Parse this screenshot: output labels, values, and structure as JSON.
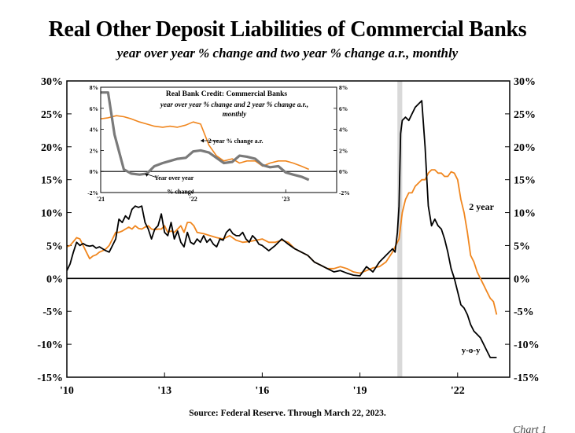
{
  "title": "Real Other Deposit Liabilities of Commercial Banks",
  "subtitle": "year over year % change and two year % change a.r., monthly",
  "source": "Source: Federal Reserve. Through March 22, 2023.",
  "footer_cut": "Chart 1",
  "colors": {
    "yoy": "#000000",
    "two_year": "#f0861e",
    "inset_yoy": "#7a7a7a",
    "shade": "#d9d9d9"
  },
  "chart_data": [
    {
      "type": "line",
      "title": "Real Other Deposit Liabilities of Commercial Banks",
      "xlim": [
        2010.0,
        2023.6
      ],
      "ylim": [
        -15,
        30
      ],
      "ytick_values": [
        -15,
        -10,
        -5,
        0,
        5,
        10,
        15,
        20,
        25,
        30
      ],
      "ytick_labels": [
        "-15%",
        "-10%",
        "-5%",
        "0%",
        "5%",
        "10%",
        "15%",
        "20%",
        "25%",
        "30%"
      ],
      "xtick_values": [
        2010,
        2013,
        2016,
        2019,
        2022
      ],
      "xtick_labels": [
        "'10",
        "'13",
        "'16",
        "'19",
        "'22"
      ],
      "recession": [
        2020.15,
        2020.3
      ],
      "series": [
        {
          "name": "y-o-y",
          "label": "y-o-y",
          "x": [
            2010.0,
            2010.1,
            2010.2,
            2010.3,
            2010.4,
            2010.5,
            2010.6,
            2010.7,
            2010.8,
            2010.9,
            2011.0,
            2011.1,
            2011.2,
            2011.3,
            2011.4,
            2011.5,
            2011.6,
            2011.7,
            2011.8,
            2011.9,
            2012.0,
            2012.1,
            2012.2,
            2012.3,
            2012.4,
            2012.5,
            2012.6,
            2012.7,
            2012.8,
            2012.9,
            2013.0,
            2013.1,
            2013.2,
            2013.3,
            2013.4,
            2013.5,
            2013.6,
            2013.7,
            2013.8,
            2013.9,
            2014.0,
            2014.1,
            2014.2,
            2014.3,
            2014.4,
            2014.5,
            2014.6,
            2014.7,
            2014.8,
            2014.9,
            2015.0,
            2015.1,
            2015.2,
            2015.3,
            2015.4,
            2015.5,
            2015.6,
            2015.7,
            2015.8,
            2015.9,
            2016.0,
            2016.2,
            2016.4,
            2016.6,
            2016.8,
            2017.0,
            2017.2,
            2017.4,
            2017.6,
            2017.8,
            2018.0,
            2018.2,
            2018.4,
            2018.6,
            2018.8,
            2019.0,
            2019.2,
            2019.4,
            2019.6,
            2019.8,
            2020.0,
            2020.08,
            2020.15,
            2020.2,
            2020.25,
            2020.3,
            2020.4,
            2020.5,
            2020.6,
            2020.7,
            2020.8,
            2020.9,
            2021.0,
            2021.1,
            2021.15,
            2021.2,
            2021.3,
            2021.4,
            2021.5,
            2021.6,
            2021.7,
            2021.8,
            2021.9,
            2022.0,
            2022.1,
            2022.2,
            2022.3,
            2022.4,
            2022.5,
            2022.6,
            2022.7,
            2022.8,
            2022.9,
            2023.0,
            2023.1,
            2023.2
          ],
          "values": [
            1.2,
            2.2,
            4.0,
            5.5,
            5.0,
            5.3,
            5.0,
            4.9,
            5.0,
            4.6,
            4.8,
            4.5,
            4.2,
            4.0,
            5.0,
            6.0,
            9.0,
            8.5,
            9.5,
            9.0,
            10.5,
            11.0,
            10.8,
            11.0,
            8.5,
            7.5,
            6.0,
            7.5,
            8.0,
            9.8,
            7.0,
            6.5,
            8.5,
            6.0,
            7.2,
            5.5,
            4.8,
            7.0,
            5.5,
            5.2,
            6.0,
            5.5,
            6.5,
            5.5,
            6.0,
            5.2,
            4.8,
            6.0,
            5.8,
            7.0,
            7.5,
            6.8,
            6.5,
            6.5,
            7.0,
            6.0,
            5.5,
            6.5,
            6.0,
            5.2,
            5.0,
            4.2,
            5.0,
            6.0,
            5.2,
            4.5,
            4.0,
            3.5,
            2.5,
            2.0,
            1.5,
            1.0,
            1.2,
            0.8,
            0.5,
            0.4,
            1.8,
            1.0,
            2.5,
            3.5,
            4.5,
            4.0,
            7.0,
            11.0,
            22.0,
            24.0,
            24.5,
            24.0,
            25.0,
            26.0,
            26.5,
            27.0,
            20.0,
            11.0,
            9.5,
            8.0,
            9.0,
            8.0,
            7.5,
            6.0,
            4.0,
            1.5,
            0.0,
            -2.0,
            -4.0,
            -4.5,
            -5.5,
            -7.0,
            -8.0,
            -8.5,
            -9.0,
            -10.0,
            -11.0,
            -12.0,
            -12.0,
            -12.0
          ]
        },
        {
          "name": "2 year",
          "label": "2 year",
          "x": [
            2010.0,
            2010.1,
            2010.2,
            2010.3,
            2010.4,
            2010.5,
            2010.6,
            2010.7,
            2010.8,
            2010.9,
            2011.0,
            2011.1,
            2011.2,
            2011.3,
            2011.4,
            2011.5,
            2011.6,
            2011.7,
            2011.8,
            2011.9,
            2012.0,
            2012.1,
            2012.2,
            2012.3,
            2012.4,
            2012.5,
            2012.6,
            2012.7,
            2012.8,
            2012.9,
            2013.0,
            2013.1,
            2013.2,
            2013.3,
            2013.4,
            2013.5,
            2013.6,
            2013.7,
            2013.8,
            2013.9,
            2014.0,
            2014.2,
            2014.4,
            2014.6,
            2014.8,
            2015.0,
            2015.2,
            2015.4,
            2015.6,
            2015.8,
            2016.0,
            2016.2,
            2016.4,
            2016.6,
            2016.8,
            2017.0,
            2017.2,
            2017.4,
            2017.6,
            2017.8,
            2018.0,
            2018.2,
            2018.4,
            2018.6,
            2018.8,
            2019.0,
            2019.2,
            2019.4,
            2019.6,
            2019.8,
            2020.0,
            2020.1,
            2020.2,
            2020.3,
            2020.4,
            2020.5,
            2020.6,
            2020.7,
            2020.8,
            2020.9,
            2021.0,
            2021.1,
            2021.2,
            2021.3,
            2021.4,
            2021.5,
            2021.6,
            2021.7,
            2021.8,
            2021.9,
            2022.0,
            2022.1,
            2022.2,
            2022.3,
            2022.4,
            2022.5,
            2022.6,
            2022.7,
            2022.8,
            2022.9,
            2023.0,
            2023.1,
            2023.2
          ],
          "values": [
            4.8,
            5.0,
            5.6,
            6.2,
            6.0,
            5.0,
            4.0,
            3.0,
            3.4,
            3.6,
            4.0,
            4.2,
            4.5,
            5.0,
            6.0,
            7.0,
            7.0,
            7.2,
            7.5,
            7.8,
            7.5,
            8.0,
            7.6,
            7.5,
            7.8,
            8.0,
            7.5,
            7.4,
            7.5,
            7.5,
            8.0,
            7.0,
            7.2,
            7.0,
            7.5,
            8.0,
            7.0,
            8.5,
            8.5,
            8.0,
            7.0,
            6.8,
            6.5,
            6.2,
            6.0,
            6.5,
            5.8,
            5.5,
            5.6,
            5.8,
            6.0,
            5.5,
            5.5,
            5.8,
            5.5,
            4.5,
            4.0,
            3.5,
            2.5,
            2.0,
            1.5,
            1.5,
            1.8,
            1.5,
            1.0,
            0.8,
            1.2,
            1.6,
            1.8,
            2.5,
            4.0,
            5.0,
            6.0,
            10.0,
            12.0,
            13.0,
            13.0,
            14.0,
            14.5,
            15.0,
            15.0,
            16.0,
            16.5,
            16.5,
            16.0,
            16.0,
            15.5,
            15.5,
            16.2,
            16.0,
            15.0,
            12.0,
            10.0,
            7.0,
            3.5,
            2.5,
            1.0,
            0.0,
            -1.0,
            -2.0,
            -3.0,
            -3.5,
            -5.5
          ]
        }
      ]
    },
    {
      "type": "line",
      "title": "Real Bank Credit: Commercial Banks",
      "subtitle": "year over year % change and 2 year % change a.r., monthly",
      "xlim": [
        2021.0,
        2023.55
      ],
      "ylim": [
        -2,
        8
      ],
      "ytick_values": [
        -2,
        0,
        2,
        4,
        6,
        8
      ],
      "ytick_labels": [
        "-2%",
        "0%",
        "2%",
        "4%",
        "6%",
        "8%"
      ],
      "xtick_values": [
        2021,
        2022,
        2023
      ],
      "xtick_labels": [
        "'21",
        "'22",
        "'23"
      ],
      "annotations": [
        {
          "text": "2 year % change a.r.",
          "x": 2022.4,
          "y": 2.7
        },
        {
          "text": "Year over year",
          "x": 2021.7,
          "y": -0.6
        },
        {
          "text": "% change",
          "x": 2021.7,
          "y": -1.5
        }
      ],
      "series": [
        {
          "name": "year over year % change",
          "x": [
            2021.0,
            2021.08,
            2021.15,
            2021.25,
            2021.33,
            2021.42,
            2021.5,
            2021.58,
            2021.67,
            2021.75,
            2021.83,
            2021.92,
            2022.0,
            2022.08,
            2022.17,
            2022.25,
            2022.33,
            2022.42,
            2022.5,
            2022.58,
            2022.67,
            2022.75,
            2022.83,
            2022.92,
            2023.0,
            2023.08,
            2023.17,
            2023.25
          ],
          "values": [
            7.5,
            7.5,
            3.5,
            0.2,
            -0.2,
            -0.3,
            -0.2,
            0.5,
            0.8,
            1.0,
            1.2,
            1.3,
            1.9,
            2.0,
            1.8,
            1.3,
            0.8,
            0.9,
            1.5,
            1.4,
            1.2,
            0.6,
            0.4,
            0.5,
            -0.1,
            -0.3,
            -0.5,
            -0.8
          ]
        },
        {
          "name": "2 year % change a.r.",
          "x": [
            2021.0,
            2021.08,
            2021.17,
            2021.25,
            2021.33,
            2021.42,
            2021.5,
            2021.58,
            2021.67,
            2021.75,
            2021.83,
            2021.92,
            2022.0,
            2022.08,
            2022.17,
            2022.25,
            2022.33,
            2022.42,
            2022.5,
            2022.58,
            2022.67,
            2022.75,
            2022.83,
            2022.92,
            2023.0,
            2023.08,
            2023.17,
            2023.25
          ],
          "values": [
            5.0,
            5.1,
            5.3,
            5.2,
            5.0,
            4.7,
            4.5,
            4.3,
            4.2,
            4.3,
            4.2,
            4.4,
            4.7,
            4.5,
            2.5,
            1.5,
            1.0,
            1.2,
            0.8,
            1.0,
            1.0,
            0.5,
            0.8,
            1.0,
            1.0,
            0.8,
            0.5,
            0.2
          ]
        }
      ]
    }
  ]
}
